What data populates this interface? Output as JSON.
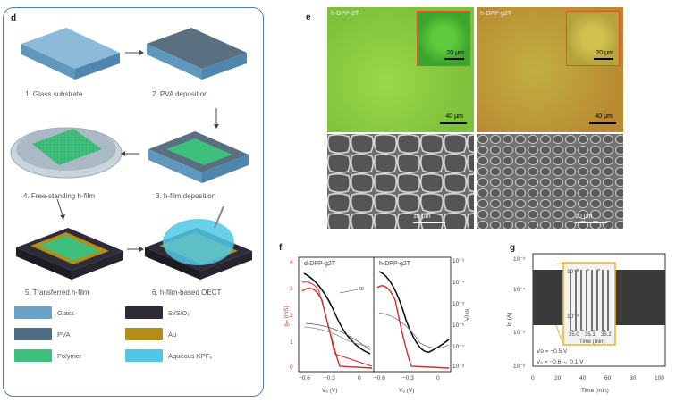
{
  "panel_d": {
    "label": "d",
    "steps": [
      "1. Glass substrate",
      "2. PVA deposition",
      "3. h-film deposition",
      "4. Free-standing h-film",
      "5. Transferred h-film",
      "6. h-film-based OECT"
    ],
    "legend": [
      {
        "name": "Glass",
        "color": "#6aa3c8"
      },
      {
        "name": "Si/SiO₂",
        "color": "#2e2c36"
      },
      {
        "name": "PVA",
        "color": "#4f6e85"
      },
      {
        "name": "Au",
        "color": "#b38d1a"
      },
      {
        "name": "Polymer",
        "color": "#3fbf7c"
      },
      {
        "name": "Aqueous KPF₆",
        "color": "#4fc8e6"
      }
    ]
  },
  "panel_e": {
    "label": "e",
    "tiles": [
      {
        "title": "h-DPP-2T",
        "scale": "40 μm",
        "inset_scale": "20 μm"
      },
      {
        "title": "h-DPP-g2T",
        "scale": "40 μm",
        "inset_scale": "20 μm"
      },
      {
        "title": "",
        "scale": "10 μm"
      },
      {
        "title": "",
        "scale": "10 μm"
      }
    ]
  },
  "panel_f": {
    "label": "f",
    "left_title": "d-DPP-g2T",
    "right_title": "h-DPP-g2T",
    "left_axis_label": "gₘ (mS)",
    "right_axis_label": "Iᴅ (A)",
    "x_label_left": "V₆ (V)",
    "x_label_right": "V₆ (V)",
    "curve_label": "Iᴅ",
    "left_ticks": [
      "4",
      "3",
      "2",
      "1",
      "0"
    ],
    "right_ticks": [
      "10⁻³",
      "10⁻⁴",
      "10⁻⁵",
      "10⁻⁶",
      "10⁻⁷",
      "10⁻⁸"
    ],
    "x_ticks_left": [
      "−0.6",
      "−0.3",
      "0"
    ],
    "x_ticks_right": [
      "−0.6",
      "−0.3",
      "0"
    ]
  },
  "panel_g": {
    "label": "g",
    "y_label": "Iᴅ (A)",
    "x_label": "Time (min)",
    "y_ticks": [
      "10⁻³",
      "10⁻⁴",
      "10⁻⁵",
      "10⁻⁶"
    ],
    "x_ticks": [
      "0",
      "20",
      "40",
      "60",
      "80",
      "100"
    ],
    "inset_x_label": "Time (min)",
    "inset_x_ticks": [
      "35.0",
      "35.1",
      "35.2"
    ],
    "inset_y_ticks": [
      "10⁻³",
      "10⁻⁴"
    ],
    "annotation_1": "Vᴅ = −0.5 V",
    "annotation_2": "V₆ = −0.6 ↔ 0.1 V"
  },
  "colors": {
    "border": "#4b7fb8",
    "gm_curve": "#d22b2b",
    "id_curve": "#111111",
    "inset_border": "#f0b429"
  }
}
